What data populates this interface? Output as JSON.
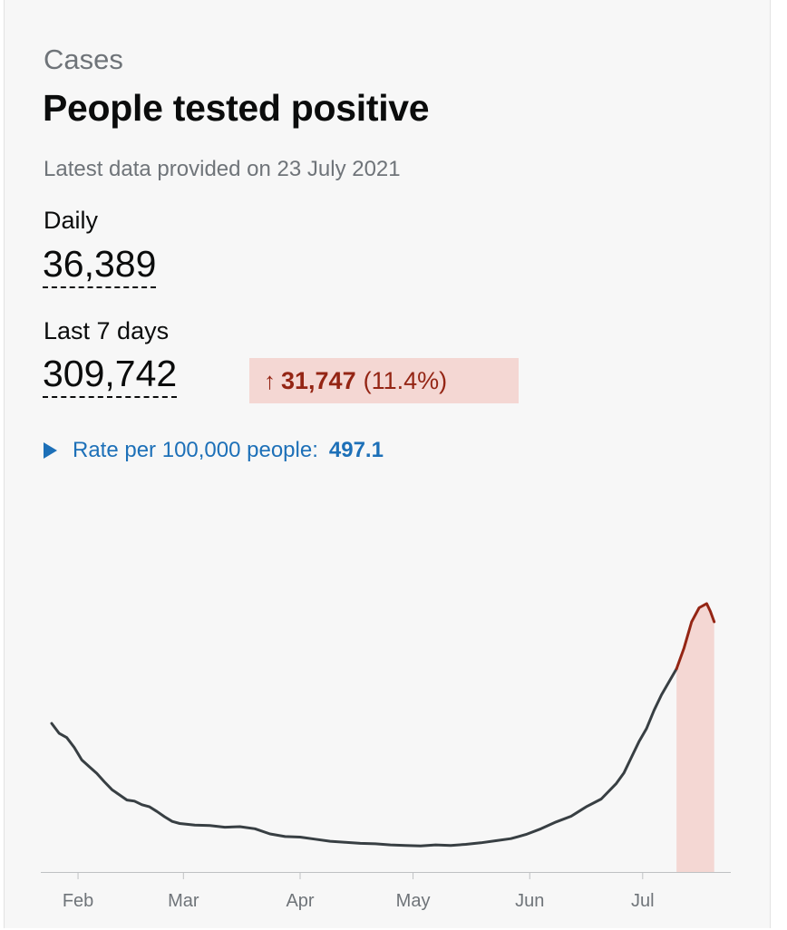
{
  "header": {
    "category": "Cases",
    "title": "People tested positive",
    "updated": "Latest data provided on 23 July 2021"
  },
  "daily": {
    "label": "Daily",
    "value": "36,389"
  },
  "weekly": {
    "label": "Last 7 days",
    "value": "309,742"
  },
  "change": {
    "arrow": "↑",
    "value": "31,747",
    "percent": "(11.4%)"
  },
  "rate": {
    "label": "Rate per 100,000 people:",
    "value": "497.1"
  },
  "colors": {
    "line": "#383f43",
    "recent": "#942514",
    "recent_fill": "#f4d7d3",
    "link": "#1d70b8",
    "muted": "#6f7479"
  },
  "chart_data": {
    "type": "line",
    "xlabel": "",
    "ylabel": "",
    "x_ticks": [
      "Feb",
      "Mar",
      "Apr",
      "May",
      "Jun",
      "Jul"
    ],
    "x_tick_days": [
      7,
      35,
      66,
      96,
      127,
      157
    ],
    "xlim": [
      0,
      178
    ],
    "ylim": [
      0,
      56000
    ],
    "highlight_from_day": 166,
    "series": [
      {
        "values": [
          [
            0,
            28500
          ],
          [
            2,
            26600
          ],
          [
            4,
            25800
          ],
          [
            6,
            23900
          ],
          [
            8,
            21500
          ],
          [
            10,
            20200
          ],
          [
            12,
            18900
          ],
          [
            14,
            17300
          ],
          [
            16,
            15800
          ],
          [
            18,
            14800
          ],
          [
            20,
            13800
          ],
          [
            22,
            13600
          ],
          [
            24,
            12900
          ],
          [
            26,
            12500
          ],
          [
            28,
            11600
          ],
          [
            30,
            10600
          ],
          [
            32,
            9700
          ],
          [
            34,
            9300
          ],
          [
            38,
            9000
          ],
          [
            42,
            8900
          ],
          [
            46,
            8600
          ],
          [
            50,
            8700
          ],
          [
            54,
            8300
          ],
          [
            58,
            7300
          ],
          [
            62,
            6800
          ],
          [
            66,
            6700
          ],
          [
            70,
            6300
          ],
          [
            74,
            5900
          ],
          [
            78,
            5700
          ],
          [
            82,
            5500
          ],
          [
            86,
            5400
          ],
          [
            90,
            5200
          ],
          [
            94,
            5100
          ],
          [
            98,
            5000
          ],
          [
            102,
            5200
          ],
          [
            106,
            5100
          ],
          [
            110,
            5300
          ],
          [
            114,
            5600
          ],
          [
            118,
            6000
          ],
          [
            122,
            6400
          ],
          [
            124,
            6800
          ],
          [
            126,
            7200
          ],
          [
            130,
            8300
          ],
          [
            134,
            9600
          ],
          [
            138,
            10700
          ],
          [
            142,
            12500
          ],
          [
            146,
            14000
          ],
          [
            150,
            17000
          ],
          [
            152,
            19000
          ],
          [
            154,
            22000
          ],
          [
            156,
            25000
          ],
          [
            158,
            27500
          ],
          [
            160,
            31000
          ],
          [
            162,
            34000
          ],
          [
            164,
            36500
          ],
          [
            166,
            39000
          ]
        ]
      },
      {
        "values": [
          [
            166,
            39000
          ],
          [
            168,
            43000
          ],
          [
            170,
            48000
          ],
          [
            172,
            50700
          ],
          [
            174,
            51500
          ],
          [
            175,
            50000
          ],
          [
            176,
            48000
          ]
        ]
      }
    ]
  }
}
